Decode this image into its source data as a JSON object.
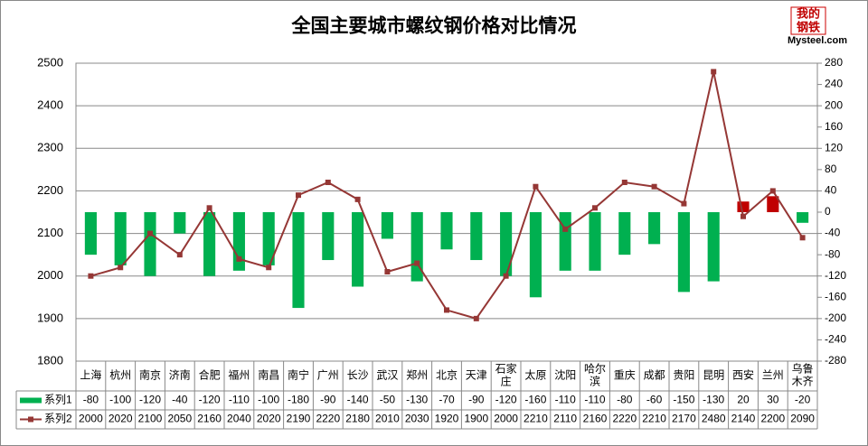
{
  "chart_data": {
    "type": "bar-line",
    "title": "全国主要城市螺纹钢价格对比情况",
    "logo": {
      "top": "我的",
      "middle": "钢铁",
      "bottom": "Mysteel.com"
    },
    "categories": [
      "上海",
      "杭州",
      "南京",
      "济南",
      "合肥",
      "福州",
      "南昌",
      "南宁",
      "广州",
      "长沙",
      "武汉",
      "郑州",
      "北京",
      "天津",
      "石家庄",
      "太原",
      "沈阳",
      "哈尔滨",
      "重庆",
      "成都",
      "贵阳",
      "昆明",
      "西安",
      "兰州",
      "乌鲁木齐"
    ],
    "series": [
      {
        "name": "系列1",
        "type": "bar",
        "axis": "y2",
        "color": "#00b050",
        "positive_color": "#c00000",
        "values": [
          -80,
          -100,
          -120,
          -40,
          -120,
          -110,
          -100,
          -180,
          -90,
          -140,
          -50,
          -130,
          -70,
          -90,
          -120,
          -160,
          -110,
          -110,
          -80,
          -60,
          -150,
          -130,
          20,
          30,
          -20
        ]
      },
      {
        "name": "系列2",
        "type": "line",
        "color": "#953735",
        "values": [
          2000,
          2020,
          2100,
          2050,
          2160,
          2040,
          2020,
          2190,
          2220,
          2180,
          2010,
          2030,
          1920,
          1900,
          2000,
          2210,
          2110,
          2160,
          2220,
          2210,
          2170,
          2480,
          2140,
          2200,
          2090
        ]
      }
    ],
    "ylim": [
      1800,
      2500
    ],
    "yticks": [
      1800,
      1900,
      2000,
      2100,
      2200,
      2300,
      2400,
      2500
    ],
    "y2lim": [
      -280,
      280
    ],
    "y2ticks": [
      -280,
      -240,
      -200,
      -160,
      -120,
      -80,
      -40,
      0,
      40,
      80,
      120,
      160,
      200,
      240,
      280
    ],
    "grid": true
  }
}
